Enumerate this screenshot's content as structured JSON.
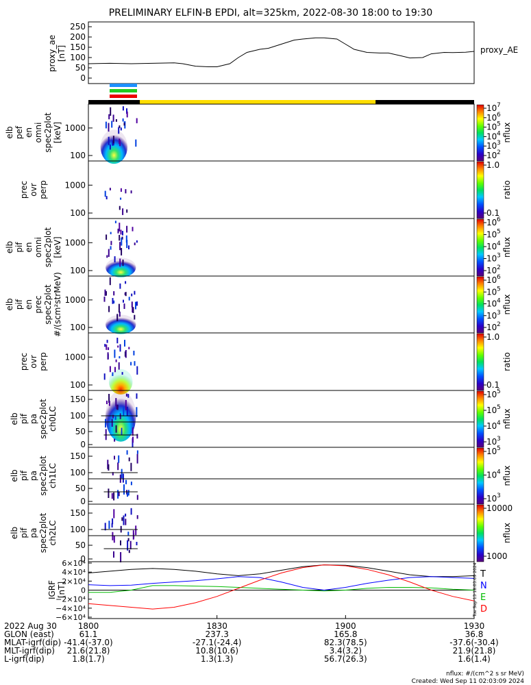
{
  "title": "PRELIMINARY ELFIN-B EPDI, alt=325km, 2022-08-30 18:00 to 19:30",
  "colors": {
    "ae_line": "#000000",
    "bar_blue": "#1e90ff",
    "bar_green": "#22cc22",
    "bar_red": "#ee0000",
    "status_black": "#000000",
    "status_yellow": "#ffdd00",
    "igrf_T": "#000000",
    "igrf_N": "#0000ff",
    "igrf_E": "#00bb00",
    "igrf_D": "#ff0000"
  },
  "chart_data": [
    {
      "panel": "proxy_ae",
      "type": "line",
      "ylabel": [
        "proxy_ae",
        "[nT]"
      ],
      "legend": "proxy_AE",
      "yticks": [
        "250",
        "200",
        "150",
        "100",
        "50",
        "0"
      ],
      "ylim": [
        0,
        260
      ],
      "x_minutes": [
        0,
        5,
        10,
        15,
        20,
        22,
        25,
        28,
        30,
        33,
        35,
        37,
        40,
        42,
        45,
        48,
        50,
        53,
        55,
        58,
        60,
        62,
        65,
        68,
        70,
        73,
        75,
        78,
        80,
        83,
        85,
        88,
        90
      ],
      "values": [
        70,
        72,
        70,
        72,
        74,
        70,
        58,
        55,
        55,
        70,
        100,
        125,
        140,
        145,
        165,
        185,
        190,
        196,
        196,
        190,
        165,
        140,
        125,
        122,
        122,
        108,
        98,
        100,
        118,
        125,
        124,
        126,
        130
      ]
    },
    {
      "panel": "status_bars",
      "type": "bar",
      "labels": [
        "blue",
        "green",
        "red"
      ]
    },
    {
      "panel": "elb_pef_omni",
      "type": "heatmap",
      "ylabel": [
        "elb",
        "pef",
        "en",
        "omni",
        "spec2plot",
        "[keV]"
      ],
      "yticks": [
        "1000",
        "100"
      ],
      "colorbar_label": "nflux",
      "colorbar_ticks": [
        "10",
        "10",
        "10",
        "10",
        "10",
        "10"
      ],
      "colorbar_exp": [
        "7",
        "6",
        "5",
        "4",
        "3",
        "2"
      ]
    },
    {
      "panel": "prec_ovr_perp_1",
      "type": "heatmap",
      "ylabel": [
        "prec",
        "ovr",
        "perp"
      ],
      "yticks": [
        "1000",
        "100"
      ],
      "colorbar_label": "ratio",
      "colorbar_ticks": [
        "1.0",
        "0.1"
      ]
    },
    {
      "panel": "elb_pif_omni",
      "type": "heatmap",
      "ylabel": [
        "elb",
        "pif",
        "en",
        "omni",
        "spec2plot",
        "[keV]"
      ],
      "yticks": [
        "1000",
        "100"
      ],
      "colorbar_label": "nflux",
      "colorbar_ticks": [
        "10",
        "10",
        "10",
        "10",
        "10"
      ],
      "colorbar_exp": [
        "6",
        "5",
        "4",
        "3",
        "2"
      ]
    },
    {
      "panel": "elb_pif_prec",
      "type": "heatmap",
      "ylabel": [
        "elb",
        "pif",
        "en",
        "prec",
        "spec2plot",
        "#/(scm²strMeV)"
      ],
      "yticks": [
        "1000",
        "100"
      ],
      "colorbar_label": "nflux",
      "colorbar_ticks": [
        "10",
        "10",
        "10",
        "10",
        "10"
      ],
      "colorbar_exp": [
        "6",
        "5",
        "4",
        "3",
        "2"
      ]
    },
    {
      "panel": "prec_ovr_perp_2",
      "type": "heatmap",
      "ylabel": [
        "prec",
        "ovr",
        "perp"
      ],
      "yticks": [
        "1000",
        "100"
      ],
      "colorbar_label": "ratio",
      "colorbar_ticks": [
        "1.0",
        "0.1"
      ]
    },
    {
      "panel": "elb_pif_pa_ch0LC",
      "type": "heatmap",
      "ylabel": [
        "elb",
        "pif",
        "pa",
        "spec2plot",
        "ch0LC"
      ],
      "yticks": [
        "150",
        "100",
        "50",
        "0"
      ],
      "colorbar_label": "nflux",
      "colorbar_ticks": [
        "10",
        "10",
        "10",
        "10"
      ],
      "colorbar_exp": [
        "5",
        "5",
        "4",
        "3"
      ]
    },
    {
      "panel": "elb_pif_pa_ch1LC",
      "type": "heatmap",
      "ylabel": [
        "elb",
        "pif",
        "pa",
        "spec2plot",
        "ch1LC"
      ],
      "yticks": [
        "150",
        "100",
        "50",
        "0"
      ],
      "colorbar_label": "nflux",
      "colorbar_ticks": [
        "10",
        "10",
        "10"
      ],
      "colorbar_exp": [
        "5",
        "4",
        "3"
      ]
    },
    {
      "panel": "elb_pif_pa_ch2LC",
      "type": "heatmap",
      "ylabel": [
        "elb",
        "pif",
        "pa",
        "spec2plot",
        "ch2LC"
      ],
      "yticks": [
        "150",
        "100",
        "50",
        "0"
      ],
      "colorbar_label": "nflux",
      "colorbar_ticks": [
        "10000",
        "1000"
      ]
    },
    {
      "panel": "igrf",
      "type": "line",
      "ylabel": [
        "IGRF",
        "[nT]"
      ],
      "yticks": [
        "6×10⁴",
        "4×10⁴",
        "2×10⁴",
        "0",
        "−2×10⁴",
        "−4×10⁴",
        "−6×10⁴"
      ],
      "ylim": [
        -60000,
        60000
      ],
      "legend": [
        "T",
        "N",
        "E",
        "D"
      ],
      "side_text": "Tue Sep 13 18:03:09 2024",
      "x_minutes": [
        0,
        5,
        10,
        15,
        20,
        25,
        30,
        35,
        40,
        45,
        50,
        55,
        60,
        65,
        70,
        75,
        80,
        85,
        90
      ],
      "series": [
        {
          "name": "T",
          "values": [
            38000,
            42000,
            46000,
            48000,
            46000,
            42000,
            36000,
            32000,
            36000,
            44000,
            52000,
            56000,
            55000,
            50000,
            42000,
            34000,
            30000,
            30000,
            32000
          ]
        },
        {
          "name": "N",
          "values": [
            12000,
            10000,
            11000,
            15000,
            18000,
            21000,
            25000,
            30000,
            28000,
            18000,
            6000,
            0,
            6000,
            15000,
            22000,
            28000,
            30000,
            28000,
            26000
          ]
        },
        {
          "name": "E",
          "values": [
            -5000,
            -5000,
            0,
            10000,
            10000,
            9000,
            8000,
            6000,
            4000,
            2000,
            0,
            -2000,
            0,
            4000,
            6000,
            6000,
            5000,
            2000,
            0
          ]
        },
        {
          "name": "D",
          "values": [
            -30000,
            -34000,
            -38000,
            -42000,
            -38000,
            -28000,
            -14000,
            4000,
            22000,
            38000,
            50000,
            56000,
            54000,
            46000,
            34000,
            18000,
            0,
            -14000,
            -24000
          ]
        }
      ]
    }
  ],
  "footer": {
    "rows": [
      {
        "label": "2022 Aug 30",
        "values": [
          "1800",
          "1830",
          "1900",
          "1930"
        ]
      },
      {
        "label": "GLON (east)",
        "values": [
          "61.1",
          "237.3",
          "165.8",
          "36.8"
        ]
      },
      {
        "label": "MLAT-igrf(dip)",
        "values": [
          "-41.4(-37.0)",
          "-27.1(-24.4)",
          "82.3(78.5)",
          "-37.6(-30.4)"
        ]
      },
      {
        "label": "MLT-igrf(dip)",
        "values": [
          "21.6(21.8)",
          "10.8(10.6)",
          "3.4(3.2)",
          "21.9(21.8)"
        ]
      },
      {
        "label": "L-igrf(dip)",
        "values": [
          "1.8(1.7)",
          "1.3(1.3)",
          "56.7(26.3)",
          "1.6(1.4)"
        ]
      }
    ],
    "note1": "nflux: #/(cm^2 s sr MeV)",
    "note2": "Created: Wed Sep 11 02:03:09 2024"
  }
}
